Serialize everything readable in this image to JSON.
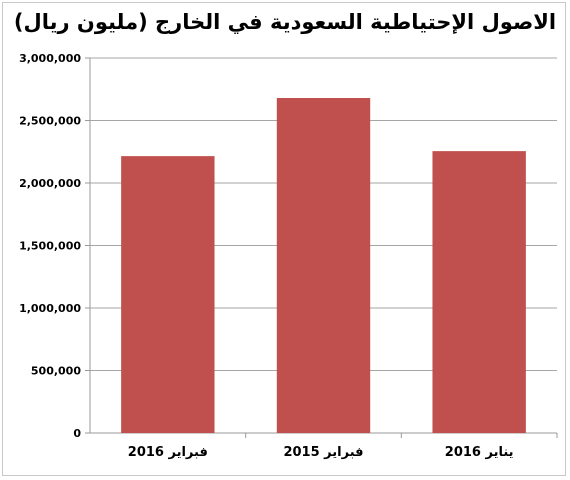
{
  "chart_data": {
    "type": "bar",
    "title": "الاصول الإحتياطية السعودية في الخارج (مليون ريال)",
    "xlabel": "",
    "ylabel": "",
    "categories": [
      "فبراير 2016",
      "فبراير 2015",
      "يناير 2016"
    ],
    "values": [
      2215000,
      2680000,
      2255000
    ],
    "ylim": [
      0,
      3000000
    ],
    "yticks": [
      0,
      500000,
      1000000,
      1500000,
      2000000,
      2500000,
      3000000
    ],
    "ytick_labels": [
      "0",
      "500,000",
      "1,000,000",
      "1,500,000",
      "2,000,000",
      "2,500,000",
      "3,000,000"
    ],
    "bar_color": "#c0504d",
    "grid": true,
    "legend": "none"
  }
}
